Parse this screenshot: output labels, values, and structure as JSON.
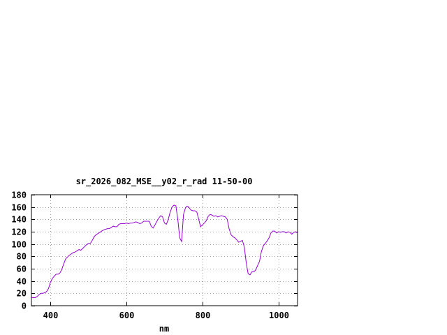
{
  "chart_data": {
    "type": "line",
    "title": "sr_2026_082_MSE__y02_r_rad 11-50-00",
    "xlabel": "nm",
    "ylabel": "",
    "xlim": [
      350,
      1050
    ],
    "ylim": [
      0,
      180
    ],
    "x_ticks": [
      400,
      600,
      800,
      1000
    ],
    "y_ticks": [
      0,
      20,
      40,
      60,
      80,
      100,
      120,
      140,
      160,
      180
    ],
    "grid": true,
    "series_color": "#9400d3",
    "series": [
      {
        "x": [
          350,
          360,
          365,
          370,
          375,
          380,
          385,
          390,
          395,
          400,
          405,
          410,
          415,
          420,
          425,
          430,
          435,
          440,
          445,
          450,
          455,
          460,
          465,
          470,
          475,
          480,
          485,
          490,
          495,
          500,
          505,
          510,
          515,
          520,
          525,
          530,
          535,
          540,
          545,
          550,
          555,
          560,
          565,
          570,
          575,
          580,
          585,
          590,
          595,
          600,
          605,
          610,
          615,
          620,
          625,
          630,
          635,
          640,
          645,
          650,
          655,
          660,
          665,
          670,
          675,
          680,
          685,
          690,
          695,
          700,
          705,
          710,
          715,
          720,
          725,
          730,
          735,
          740,
          745,
          750,
          755,
          758,
          762,
          766,
          770,
          775,
          780,
          785,
          790,
          795,
          800,
          805,
          810,
          815,
          820,
          825,
          830,
          835,
          840,
          845,
          850,
          855,
          860,
          865,
          870,
          875,
          880,
          885,
          890,
          895,
          900,
          905,
          910,
          915,
          920,
          925,
          930,
          935,
          940,
          945,
          950,
          955,
          960,
          965,
          970,
          975,
          980,
          985,
          990,
          995,
          1000,
          1005,
          1010,
          1015,
          1020,
          1025,
          1030,
          1035,
          1040,
          1045,
          1050
        ],
        "y": [
          13,
          13,
          15,
          18,
          20,
          20,
          21,
          23,
          28,
          38,
          44,
          48,
          51,
          51,
          53,
          59,
          68,
          76,
          79,
          82,
          84,
          86,
          87,
          89,
          91,
          90,
          93,
          96,
          99,
          101,
          101,
          106,
          112,
          115,
          117,
          119,
          121,
          123,
          124,
          125,
          125,
          127,
          129,
          128,
          128,
          132,
          133,
          133,
          133,
          134,
          133,
          134,
          134,
          135,
          136,
          135,
          133,
          134,
          137,
          137,
          137,
          137,
          129,
          126,
          131,
          137,
          142,
          146,
          144,
          134,
          132,
          140,
          152,
          160,
          163,
          162,
          140,
          110,
          104,
          148,
          158,
          161,
          161,
          158,
          155,
          154,
          154,
          152,
          140,
          128,
          131,
          134,
          138,
          145,
          148,
          147,
          145,
          146,
          144,
          145,
          146,
          145,
          144,
          140,
          125,
          115,
          112,
          110,
          107,
          103,
          104,
          106,
          95,
          70,
          52,
          50,
          55,
          55,
          58,
          65,
          72,
          88,
          97,
          101,
          105,
          110,
          118,
          121,
          121,
          118,
          120,
          119,
          120,
          120,
          118,
          120,
          119,
          116,
          119,
          120,
          118
        ]
      }
    ]
  }
}
